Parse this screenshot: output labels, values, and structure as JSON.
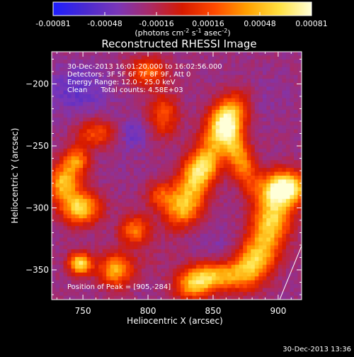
{
  "chart_data": {
    "type": "heatmap",
    "title": "Reconstructed RHESSI Image",
    "xlabel": "Heliocentric X (arcsec)",
    "ylabel": "Heliocentric Y (arcsec)",
    "xlim": [
      726,
      918
    ],
    "ylim": [
      -374,
      -174
    ],
    "x_ticks": [
      750,
      800,
      850,
      900
    ],
    "y_ticks": [
      -200,
      -250,
      -300,
      -350
    ],
    "colorbar": {
      "min": -0.00081,
      "max": 0.00081,
      "ticks": [
        "-0.00081",
        "-0.00048",
        "-0.00016",
        "0.00016",
        "0.00048",
        "0.00081"
      ],
      "units_label": "(photons cm^-2 s^-1 asec^-2)",
      "stops": [
        "#1e1eff",
        "#4a2ad0",
        "#7a36b8",
        "#aa2a66",
        "#d61a00",
        "#ff4a00",
        "#ffa000",
        "#ffe040",
        "#ffffd8"
      ]
    },
    "info_lines": [
      "30-Dec-2013 16:01:20.000 to 16:02:56.000",
      "Detectors: 3F 5F 6F 7F 8F 9F, Att 0",
      "Energy Range: 12.0 - 25.0 keV",
      "Clean      Total counts: 4.58E+03"
    ],
    "peak_label": "Position of Peak = [905,-284]",
    "peak": [
      905,
      -284
    ],
    "footer_timestamp": "30-Dec-2013 13:36",
    "components": [
      {
        "x": 860,
        "y": -230,
        "value": 0.00075,
        "sx": 16,
        "sy": 9,
        "angle": 62
      },
      {
        "x": 840,
        "y": -270,
        "value": 0.0007,
        "sx": 15,
        "sy": 9,
        "angle": 58
      },
      {
        "x": 828,
        "y": -300,
        "value": 0.00045,
        "sx": 12,
        "sy": 9,
        "angle": 55
      },
      {
        "x": 905,
        "y": -284,
        "value": 0.00081,
        "sx": 12,
        "sy": 9,
        "angle": 0
      },
      {
        "x": 895,
        "y": -310,
        "value": 0.0006,
        "sx": 10,
        "sy": 18,
        "angle": -15
      },
      {
        "x": 880,
        "y": -345,
        "value": 0.00052,
        "sx": 10,
        "sy": 14,
        "angle": -30
      },
      {
        "x": 870,
        "y": -258,
        "value": 0.0004,
        "sx": 7,
        "sy": 20,
        "angle": 20
      },
      {
        "x": 852,
        "y": -355,
        "value": 0.00042,
        "sx": 14,
        "sy": 8,
        "angle": 0
      },
      {
        "x": 835,
        "y": -362,
        "value": 0.0004,
        "sx": 10,
        "sy": 8,
        "angle": 10
      },
      {
        "x": 748,
        "y": -345,
        "value": 0.00068,
        "sx": 6,
        "sy": 6,
        "angle": 0
      },
      {
        "x": 748,
        "y": -300,
        "value": 0.0006,
        "sx": 10,
        "sy": 9,
        "angle": 0
      },
      {
        "x": 735,
        "y": -280,
        "value": 0.0005,
        "sx": 8,
        "sy": 10,
        "angle": 0
      },
      {
        "x": 775,
        "y": -350,
        "value": 0.00045,
        "sx": 9,
        "sy": 9,
        "angle": 0
      },
      {
        "x": 790,
        "y": -318,
        "value": 0.0003,
        "sx": 8,
        "sy": 8,
        "angle": 0
      },
      {
        "x": 745,
        "y": -262,
        "value": 0.00035,
        "sx": 7,
        "sy": 8,
        "angle": 0
      },
      {
        "x": 800,
        "y": -190,
        "value": 0.00025,
        "sx": 10,
        "sy": 8,
        "angle": 0
      },
      {
        "x": 812,
        "y": -225,
        "value": 0.0002,
        "sx": 8,
        "sy": 12,
        "angle": 0
      },
      {
        "x": 760,
        "y": -240,
        "value": 0.0002,
        "sx": 10,
        "sy": 8,
        "angle": 0
      },
      {
        "x": 810,
        "y": -290,
        "value": 0.00018,
        "sx": 8,
        "sy": 8,
        "angle": 0
      },
      {
        "x": 745,
        "y": -205,
        "value": -0.0005,
        "sx": 16,
        "sy": 14,
        "angle": 0
      },
      {
        "x": 780,
        "y": -250,
        "value": -0.0003,
        "sx": 14,
        "sy": 18,
        "angle": 0
      },
      {
        "x": 790,
        "y": -240,
        "value": -0.00045,
        "sx": 6,
        "sy": 8,
        "angle": 0
      },
      {
        "x": 855,
        "y": -330,
        "value": -0.00035,
        "sx": 10,
        "sy": 10,
        "angle": 0
      },
      {
        "x": 880,
        "y": -210,
        "value": -0.00035,
        "sx": 18,
        "sy": 14,
        "angle": 0
      },
      {
        "x": 800,
        "y": -340,
        "value": -0.0002,
        "sx": 14,
        "sy": 10,
        "angle": 0
      }
    ]
  }
}
